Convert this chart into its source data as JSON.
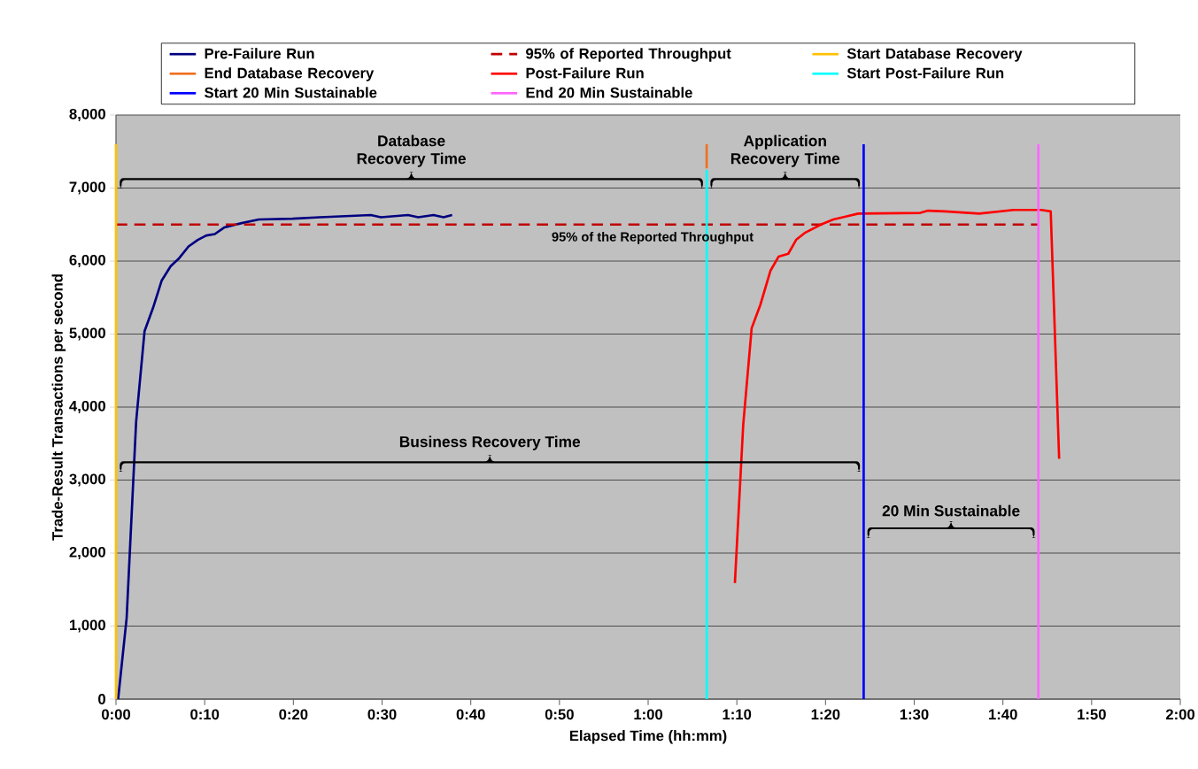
{
  "chart_data": {
    "type": "line",
    "xlabel": "Elapsed Time (hh:mm)",
    "ylabel": "Trade-Result Transactions per second",
    "xlim": [
      0,
      120
    ],
    "ylim": [
      0,
      8000
    ],
    "xticks": [
      {
        "value": 0,
        "label": "0:00"
      },
      {
        "value": 10,
        "label": "0:10"
      },
      {
        "value": 20,
        "label": "0:20"
      },
      {
        "value": 30,
        "label": "0:30"
      },
      {
        "value": 40,
        "label": "0:40"
      },
      {
        "value": 50,
        "label": "0:50"
      },
      {
        "value": 60,
        "label": "1:00"
      },
      {
        "value": 70,
        "label": "1:10"
      },
      {
        "value": 80,
        "label": "1:20"
      },
      {
        "value": 90,
        "label": "1:30"
      },
      {
        "value": 100,
        "label": "1:40"
      },
      {
        "value": 110,
        "label": "1:50"
      },
      {
        "value": 120,
        "label": "2:00"
      }
    ],
    "yticks": [
      0,
      {
        "value": 1000,
        "label": "1,000"
      },
      {
        "value": 2000,
        "label": "2,000"
      },
      {
        "value": 3000,
        "label": "3,000"
      },
      {
        "value": 4000,
        "label": "4,000"
      },
      {
        "value": 5000,
        "label": "5,000"
      },
      {
        "value": 6000,
        "label": "6,000"
      },
      {
        "value": 7000,
        "label": "7,000"
      },
      {
        "value": 8000,
        "label": "8,000"
      }
    ],
    "grid": "y",
    "legend": "top",
    "series": [
      {
        "name": "Pre-Failure Run",
        "color": "#000080",
        "x": [
          0.24,
          1.2,
          2.27,
          3.22,
          4.18,
          5.14,
          6.17,
          7.13,
          8.18,
          9.22,
          10.18,
          11.14,
          12.2,
          14.17,
          16.11,
          19.93,
          22.99,
          28.73,
          29.87,
          32.93,
          34.08,
          35.8,
          36.93,
          37.9
        ],
        "values": [
          0,
          1110,
          3800,
          5040,
          5360,
          5730,
          5930,
          6040,
          6200,
          6290,
          6350,
          6370,
          6460,
          6520,
          6570,
          6580,
          6600,
          6630,
          6600,
          6630,
          6600,
          6630,
          6600,
          6630
        ]
      },
      {
        "name": "95% of Reported Throughput",
        "color": "#c00000",
        "line_style": "dashed",
        "x": [
          0,
          104
        ],
        "values": [
          6500,
          6500
        ]
      },
      {
        "name": "Start Database Recovery",
        "color": "#ffc000",
        "x": [
          0,
          0
        ],
        "values": [
          0,
          7600
        ]
      },
      {
        "name": "End Database Recovery",
        "color": "#f07020",
        "x": [
          66.6,
          66.6
        ],
        "values": [
          7270,
          7600
        ]
      },
      {
        "name": "Post-Failure Run",
        "color": "#ff0000",
        "x": [
          69.78,
          70.72,
          71.67,
          72.65,
          73.8,
          74.7,
          75.8,
          76.68,
          77.72,
          79.48,
          80.88,
          82.27,
          83.68,
          90.68,
          91.56,
          93.48,
          97.34,
          101.19,
          104.34,
          105.39,
          106.34
        ],
        "values": [
          1590,
          3760,
          5080,
          5400,
          5870,
          6060,
          6100,
          6290,
          6390,
          6500,
          6570,
          6610,
          6650,
          6660,
          6690,
          6680,
          6650,
          6700,
          6700,
          6680,
          3290
        ]
      },
      {
        "name": "Start Post-Failure Run",
        "color": "#00ffff",
        "x": [
          66.6,
          66.6
        ],
        "values": [
          0,
          7250
        ]
      },
      {
        "name": "Start 20 Min Sustainable",
        "color": "#0000ff",
        "x": [
          84.3,
          84.3
        ],
        "values": [
          0,
          7600
        ]
      },
      {
        "name": "End 20 Min Sustainable",
        "color": "#ff66ff",
        "x": [
          104,
          104
        ],
        "values": [
          0,
          7600
        ]
      }
    ],
    "annotations": [
      "Database Recovery Time",
      "Application Recovery Time",
      "Business Recovery Time",
      "20 Min Sustainable",
      {
        "text": "95% of the Reported Throughput",
        "x": 60.5,
        "y": 6500
      }
    ]
  }
}
